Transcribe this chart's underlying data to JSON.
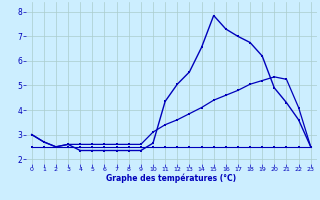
{
  "xlabel": "Graphe des températures (°C)",
  "background_color": "#cceeff",
  "grid_color": "#aacccc",
  "line_color": "#0000bb",
  "xlim": [
    -0.5,
    23.5
  ],
  "ylim": [
    1.8,
    8.4
  ],
  "yticks": [
    2,
    3,
    4,
    5,
    6,
    7,
    8
  ],
  "xticks": [
    0,
    1,
    2,
    3,
    4,
    5,
    6,
    7,
    8,
    9,
    10,
    11,
    12,
    13,
    14,
    15,
    16,
    17,
    18,
    19,
    20,
    21,
    22,
    23
  ],
  "series1_x": [
    0,
    1,
    2,
    3,
    4,
    5,
    6,
    7,
    8,
    9,
    10,
    11,
    12,
    13,
    14,
    15,
    16,
    17,
    18,
    19,
    20,
    21,
    22,
    23
  ],
  "series1_y": [
    3.0,
    2.7,
    2.5,
    2.6,
    2.35,
    2.35,
    2.35,
    2.35,
    2.35,
    2.35,
    2.65,
    4.35,
    5.05,
    5.55,
    6.55,
    7.85,
    7.3,
    7.0,
    6.75,
    6.2,
    4.9,
    4.3,
    3.6,
    2.5
  ],
  "series2_x": [
    0,
    1,
    2,
    3,
    4,
    5,
    6,
    7,
    8,
    9,
    10,
    11,
    12,
    13,
    14,
    15,
    16,
    17,
    18,
    19,
    20,
    21,
    22,
    23
  ],
  "series2_y": [
    3.0,
    2.7,
    2.5,
    2.6,
    2.6,
    2.6,
    2.6,
    2.6,
    2.6,
    2.6,
    3.1,
    3.4,
    3.6,
    3.85,
    4.1,
    4.4,
    4.6,
    4.8,
    5.05,
    5.2,
    5.35,
    5.25,
    4.1,
    2.5
  ],
  "series3_x": [
    0,
    1,
    2,
    3,
    4,
    5,
    6,
    7,
    8,
    9,
    10,
    11,
    12,
    13,
    14,
    15,
    16,
    17,
    18,
    19,
    20,
    21,
    22,
    23
  ],
  "series3_y": [
    2.5,
    2.5,
    2.5,
    2.5,
    2.5,
    2.5,
    2.5,
    2.5,
    2.5,
    2.5,
    2.5,
    2.5,
    2.5,
    2.5,
    2.5,
    2.5,
    2.5,
    2.5,
    2.5,
    2.5,
    2.5,
    2.5,
    2.5,
    2.5
  ]
}
